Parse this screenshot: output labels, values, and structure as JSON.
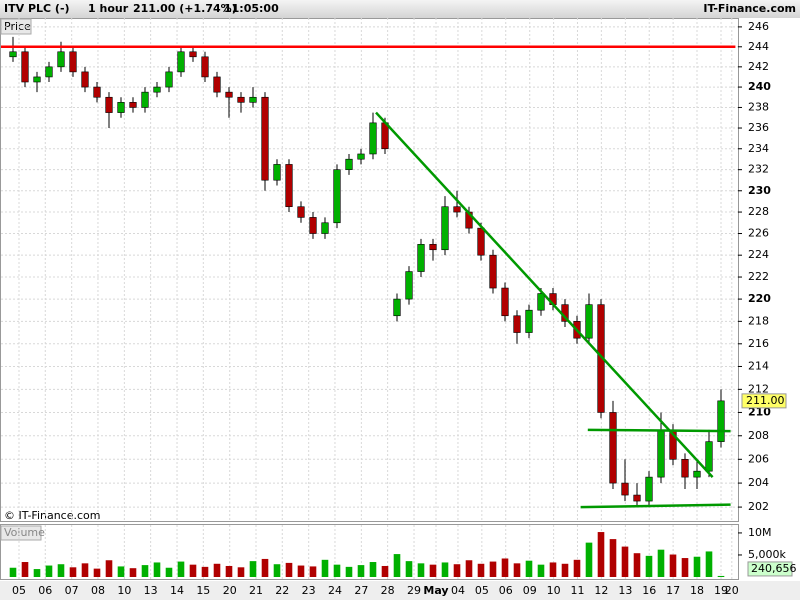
{
  "header": {
    "symbol": "ITV PLC (-)",
    "interval": "1 hour",
    "price": "211.00 (+1.74%)",
    "time": "11:05:00",
    "site": "IT-Finance.com"
  },
  "chart_data": {
    "type": "candlestick",
    "price_label": "Price",
    "volume_label": "Volume",
    "copyright": "© IT-Finance.com",
    "log_scale": true,
    "grid": true,
    "up_color": "#00b000",
    "down_color": "#b00000",
    "xlim": [
      0,
      61.25
    ],
    "xticks": [
      {
        "value": 1.5,
        "label": "05"
      },
      {
        "value": 3.69,
        "label": "06"
      },
      {
        "value": 5.89,
        "label": "07"
      },
      {
        "value": 8.08,
        "label": "08"
      },
      {
        "value": 10.28,
        "label": "10"
      },
      {
        "value": 12.47,
        "label": "13"
      },
      {
        "value": 14.67,
        "label": "14"
      },
      {
        "value": 16.86,
        "label": "15"
      },
      {
        "value": 19.06,
        "label": "20"
      },
      {
        "value": 21.25,
        "label": "21"
      },
      {
        "value": 23.44,
        "label": "22"
      },
      {
        "value": 25.64,
        "label": "23"
      },
      {
        "value": 27.83,
        "label": "24"
      },
      {
        "value": 30.03,
        "label": "27"
      },
      {
        "value": 32.22,
        "label": "28"
      },
      {
        "value": 34.42,
        "label": "29"
      },
      {
        "value": 36.25,
        "label": "May"
      },
      {
        "value": 38.08,
        "label": "04"
      },
      {
        "value": 40.07,
        "label": "05"
      },
      {
        "value": 42.06,
        "label": "06"
      },
      {
        "value": 44.06,
        "label": "09"
      },
      {
        "value": 46.05,
        "label": "10"
      },
      {
        "value": 48.04,
        "label": "11"
      },
      {
        "value": 50.03,
        "label": "12"
      },
      {
        "value": 52.03,
        "label": "13"
      },
      {
        "value": 54.02,
        "label": "16"
      },
      {
        "value": 56.01,
        "label": "17"
      },
      {
        "value": 58.0,
        "label": "18"
      },
      {
        "value": 60.0,
        "label": "19"
      },
      {
        "value": 60.9,
        "label": "20"
      }
    ],
    "ylim": [
      200.85,
      246.9
    ],
    "yticks": [
      202,
      204,
      206,
      208,
      210,
      212,
      214,
      216,
      218,
      220,
      222,
      224,
      226,
      228,
      230,
      232,
      234,
      236,
      238,
      240,
      242,
      244,
      246
    ],
    "last_price": {
      "value": 211,
      "label": "211.00",
      "color": "#ffff66"
    },
    "x": [
      1,
      2,
      3,
      4,
      5,
      6,
      7,
      8,
      9,
      10,
      11,
      12,
      13,
      14,
      15,
      16,
      17,
      18,
      19,
      20,
      21,
      22,
      23,
      24,
      25,
      26,
      27,
      28,
      29,
      30,
      31,
      32,
      33,
      34,
      35,
      36,
      37,
      38,
      39,
      40,
      41,
      42,
      43,
      44,
      45,
      46,
      47,
      48,
      49,
      50,
      51,
      52,
      53,
      54,
      55,
      56,
      57,
      58,
      59,
      60
    ],
    "open": [
      243,
      243.5,
      240.5,
      241,
      242,
      243.5,
      241.5,
      240,
      239,
      237.5,
      238.5,
      238,
      239.5,
      240,
      241.5,
      243.5,
      243,
      241,
      239.5,
      239,
      238.5,
      239,
      231,
      232.5,
      228.5,
      227.5,
      226,
      227,
      232,
      233,
      233.5,
      236.5,
      218.5,
      220,
      222.5,
      225,
      224.5,
      228.5,
      228,
      226.5,
      224,
      221,
      218.5,
      217,
      219,
      220.5,
      219.5,
      218,
      216.5,
      219.5,
      210,
      204,
      203,
      202.5,
      204.5,
      208.5,
      206,
      204.5,
      205,
      207.5
    ],
    "high": [
      245,
      244,
      241.5,
      242.5,
      244.5,
      244,
      242,
      240.5,
      239.5,
      239,
      239,
      240,
      240.5,
      242,
      244,
      244,
      243.5,
      241.5,
      240,
      239.5,
      240,
      239.5,
      233,
      233,
      229,
      228,
      227.5,
      232.5,
      233.5,
      234,
      237.5,
      237,
      220.5,
      223,
      225.5,
      225.5,
      229.5,
      230,
      228.5,
      227,
      224.5,
      221.5,
      219,
      219.5,
      221,
      221,
      220,
      218.5,
      220.5,
      220,
      211,
      206,
      204,
      205,
      210,
      209,
      206.5,
      206,
      208.5,
      212
    ],
    "low": [
      242.5,
      240,
      239.5,
      240.5,
      241.5,
      241,
      239.5,
      238.5,
      236,
      237,
      237.5,
      237.5,
      239,
      239.5,
      241,
      242.5,
      240.5,
      239,
      237,
      237.5,
      238,
      230,
      230.5,
      228,
      227,
      225.5,
      225.5,
      226.5,
      231.5,
      232.5,
      233,
      233.5,
      218,
      219.5,
      222,
      223.5,
      224,
      227.5,
      226,
      223.5,
      220.5,
      218,
      216,
      216.5,
      218.5,
      219,
      217.5,
      216,
      216,
      209.5,
      203.5,
      202.5,
      202,
      202,
      204,
      205.5,
      203.5,
      203.5,
      204.5,
      207
    ],
    "close": [
      243.5,
      240.5,
      241,
      242,
      243.5,
      241.5,
      240,
      239,
      237.5,
      238.5,
      238,
      239.5,
      240,
      241.5,
      243.5,
      243,
      241,
      239.5,
      239,
      238.5,
      239,
      231,
      232.5,
      228.5,
      227.5,
      226,
      227,
      232,
      233,
      233.5,
      236.5,
      234,
      220,
      222.5,
      225,
      224.5,
      228.5,
      228,
      226.5,
      224,
      221,
      218.5,
      217,
      219,
      220.5,
      219.5,
      218,
      216.5,
      219.5,
      210,
      204,
      203,
      202.5,
      204.5,
      208.5,
      206,
      204.5,
      205,
      207.5,
      211
    ],
    "volume": [
      2100000,
      3400000,
      1800000,
      2600000,
      2900000,
      2200000,
      3100000,
      1900000,
      3800000,
      2400000,
      2000000,
      2700000,
      3300000,
      2100000,
      3500000,
      2800000,
      2300000,
      3000000,
      2500000,
      2200000,
      3600000,
      4100000,
      2900000,
      3200000,
      2600000,
      2400000,
      3900000,
      2800000,
      2300000,
      2700000,
      3400000,
      2500000,
      5200000,
      3600000,
      3100000,
      2800000,
      3300000,
      2900000,
      3800000,
      3000000,
      3500000,
      4200000,
      3100000,
      3700000,
      2800000,
      3300000,
      3000000,
      3900000,
      7800000,
      10200000,
      8600000,
      6900000,
      5400000,
      4800000,
      6200000,
      5100000,
      4300000,
      4600000,
      5800000,
      240656
    ],
    "volume_ylim": [
      0,
      11800000
    ],
    "volume_yticks": [
      {
        "value": 10000000,
        "label": "10M"
      },
      {
        "value": 5000000,
        "label": "5,000k"
      }
    ],
    "last_volume": {
      "value": 240656,
      "label": "240,656",
      "color": "#ccffcc"
    },
    "lines": [
      {
        "color": "#ff0000",
        "x": [
          0,
          61.2
        ],
        "y": [
          244,
          244
        ]
      },
      {
        "color": "#009900",
        "x": [
          31.25,
          59.3
        ],
        "y": [
          237.5,
          204.5
        ]
      },
      {
        "color": "#009900",
        "x": [
          48.9,
          60.8
        ],
        "y": [
          208.5,
          208.4
        ]
      },
      {
        "color": "#009900",
        "x": [
          48.3,
          60.8
        ],
        "y": [
          202,
          202.2
        ]
      }
    ]
  }
}
